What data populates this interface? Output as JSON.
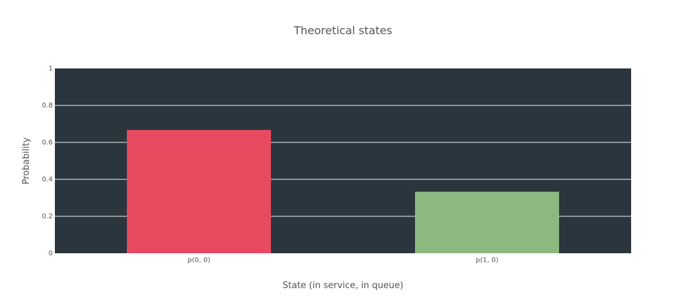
{
  "chart_data": {
    "type": "bar",
    "title": "Theoretical states",
    "xlabel": "State (in service, in queue)",
    "ylabel": "Probability",
    "categories": [
      "p(0, 0)",
      "p(1, 0)"
    ],
    "values": [
      0.667,
      0.333
    ],
    "ylim": [
      0,
      1
    ],
    "yticks": [
      "0",
      "0.2",
      "0.4",
      "0.6",
      "0.8",
      "1"
    ],
    "grid": true,
    "colors": {
      "plot_background": "#2b353d",
      "gridline": "#aab3b9",
      "bars": [
        "#e84b60",
        "#8cb97f"
      ]
    }
  }
}
